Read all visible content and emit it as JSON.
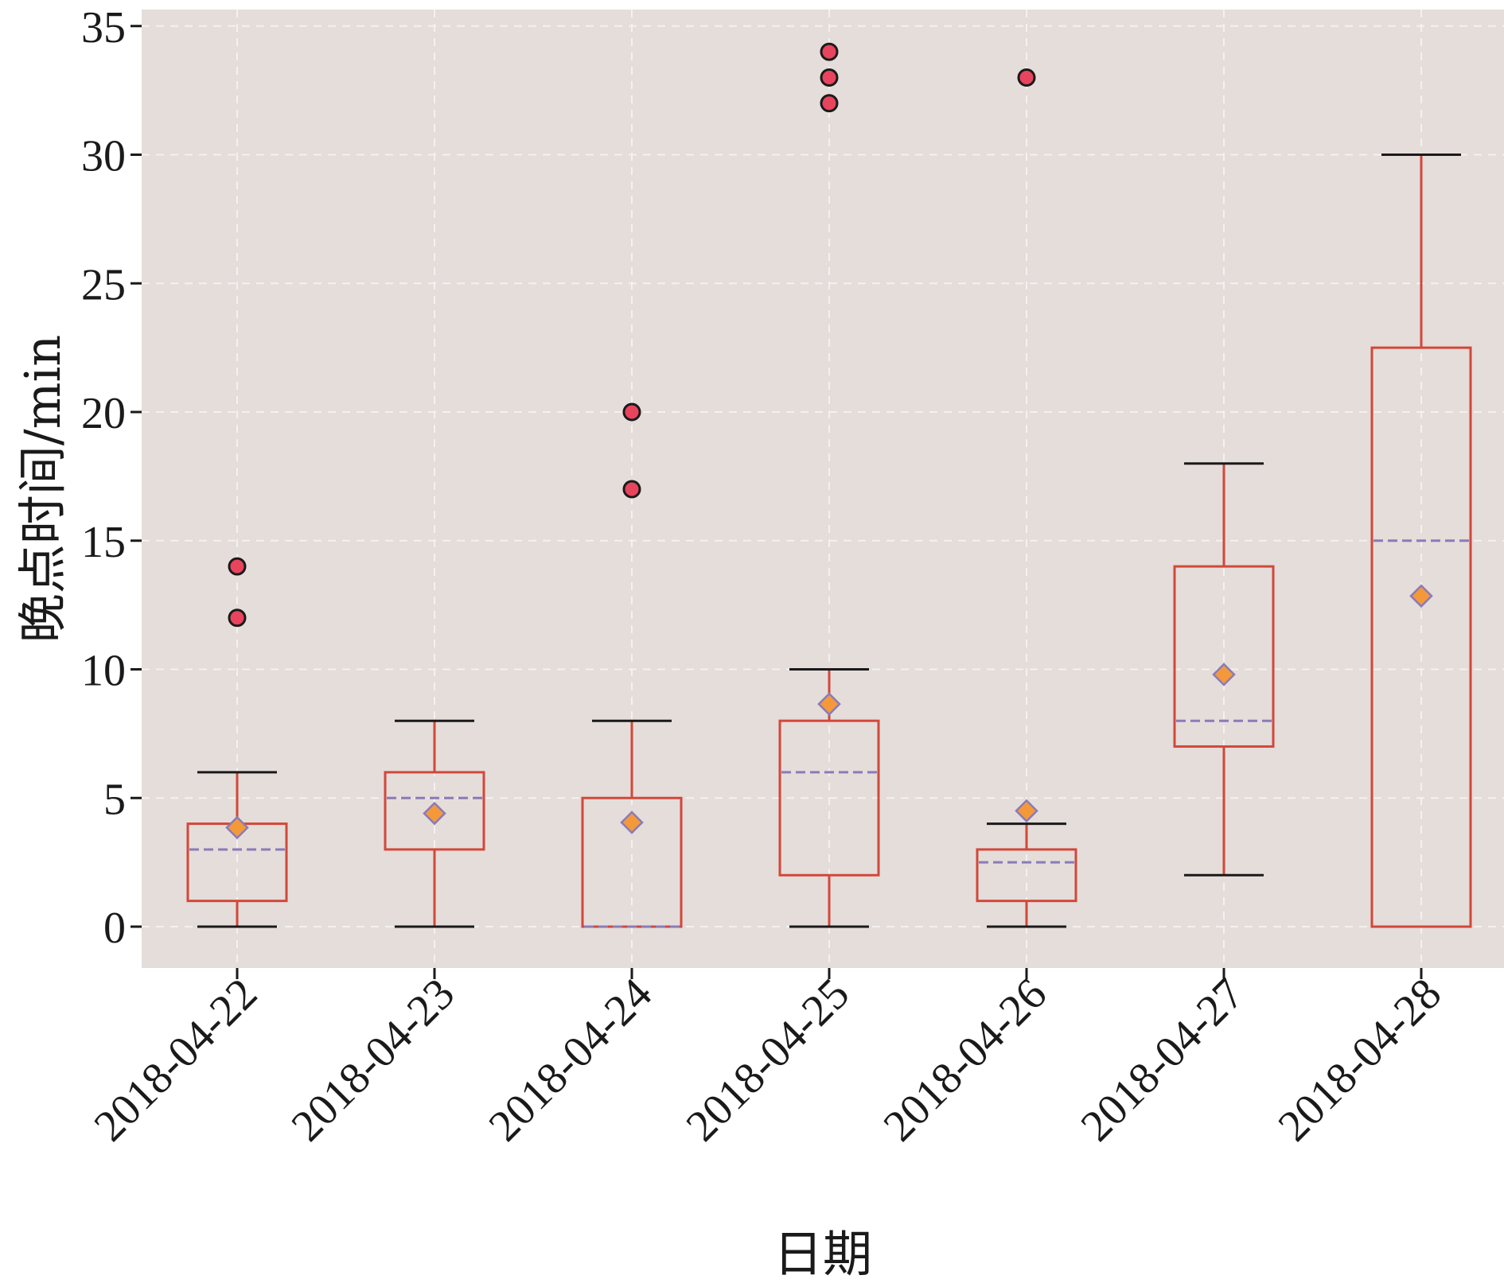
{
  "chart_data": {
    "type": "box",
    "xlabel": "日期",
    "ylabel": "晚点时间/min",
    "ylim": [
      0,
      35
    ],
    "yticks": [
      0,
      5,
      10,
      15,
      20,
      25,
      30,
      35
    ],
    "grid": true,
    "categories": [
      "2018-04-22",
      "2018-04-23",
      "2018-04-24",
      "2018-04-25",
      "2018-04-26",
      "2018-04-27",
      "2018-04-28"
    ],
    "boxes": [
      {
        "whisker_low": 0,
        "q1": 1,
        "median": 3,
        "q3": 4,
        "whisker_high": 6,
        "mean": 3.85,
        "outliers": [
          12,
          14
        ]
      },
      {
        "whisker_low": 0,
        "q1": 3,
        "median": 5,
        "q3": 6,
        "whisker_high": 8,
        "mean": 4.4,
        "outliers": []
      },
      {
        "whisker_low": 0,
        "q1": 0,
        "median": 0,
        "q3": 5,
        "whisker_high": 8,
        "mean": 4.05,
        "outliers": [
          17,
          20
        ]
      },
      {
        "whisker_low": 0,
        "q1": 2,
        "median": 6,
        "q3": 8,
        "whisker_high": 10,
        "mean": 8.65,
        "outliers": [
          32,
          33,
          34
        ]
      },
      {
        "whisker_low": 0,
        "q1": 1,
        "median": 2.5,
        "q3": 3,
        "whisker_high": 4,
        "mean": 4.5,
        "outliers": [
          33
        ]
      },
      {
        "whisker_low": 2,
        "q1": 7,
        "median": 8,
        "q3": 14,
        "whisker_high": 18,
        "mean": 9.8,
        "outliers": []
      },
      {
        "whisker_low": 0,
        "q1": 0,
        "median": 15,
        "q3": 22.5,
        "whisker_high": 30,
        "mean": 12.85,
        "outliers": []
      }
    ],
    "colors": {
      "background": "#e4ddda",
      "box": "#d2483a",
      "whisker_cap": "#1a1a1a",
      "median": "#8a7bb8",
      "mean_fill": "#f4993a",
      "mean_edge": "#8a7bb8",
      "outlier_fill": "#e8445e",
      "outlier_edge": "#1a1a1a",
      "grid": "#f4f1ef"
    }
  }
}
